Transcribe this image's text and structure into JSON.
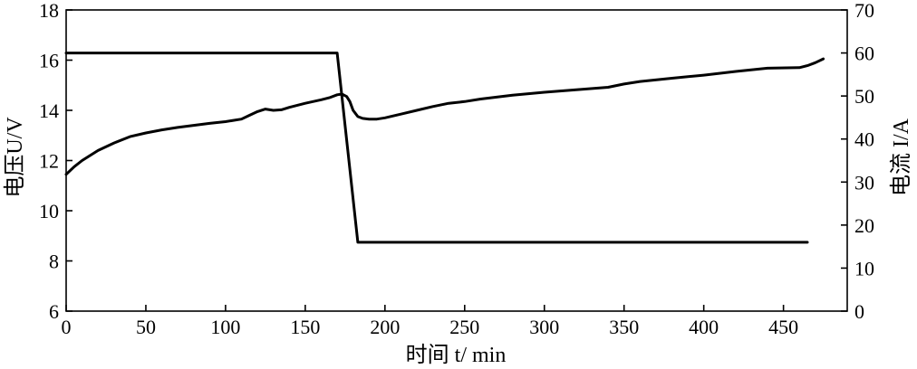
{
  "chart_data": {
    "type": "line",
    "title": "",
    "xlabel": "时间 t/ min",
    "ylabel_left": "电压U/V",
    "ylabel_right": "电流 I/A",
    "xlim": [
      0,
      490
    ],
    "ylim_left": [
      6,
      18
    ],
    "ylim_right": [
      0,
      70
    ],
    "x_ticks": [
      0,
      50,
      100,
      150,
      200,
      250,
      300,
      350,
      400,
      450
    ],
    "y_left_ticks": [
      6,
      8,
      10,
      12,
      14,
      16,
      18
    ],
    "y_right_ticks": [
      0,
      10,
      20,
      30,
      40,
      50,
      60,
      70
    ],
    "grid": false,
    "legend": "none",
    "series": [
      {
        "axis": "left",
        "x": [
          0,
          5,
          10,
          20,
          30,
          40,
          50,
          60,
          70,
          80,
          90,
          100,
          110,
          115,
          120,
          125,
          130,
          135,
          140,
          150,
          160,
          165,
          170,
          173,
          176,
          178,
          180,
          183,
          186,
          190,
          195,
          200,
          210,
          220,
          230,
          240,
          250,
          260,
          280,
          300,
          320,
          340,
          350,
          360,
          380,
          400,
          420,
          440,
          460,
          465,
          470,
          475
        ],
        "values": [
          11.45,
          11.75,
          12.0,
          12.4,
          12.7,
          12.95,
          13.1,
          13.22,
          13.32,
          13.4,
          13.48,
          13.55,
          13.65,
          13.8,
          13.95,
          14.05,
          14.0,
          14.02,
          14.12,
          14.28,
          14.42,
          14.5,
          14.62,
          14.65,
          14.55,
          14.35,
          14.0,
          13.75,
          13.68,
          13.65,
          13.65,
          13.7,
          13.85,
          14.0,
          14.15,
          14.28,
          14.35,
          14.45,
          14.6,
          14.72,
          14.82,
          14.92,
          15.05,
          15.15,
          15.28,
          15.4,
          15.55,
          15.68,
          15.7,
          15.78,
          15.9,
          16.05
        ]
      },
      {
        "axis": "right",
        "x": [
          0,
          170,
          183,
          465
        ],
        "values": [
          60,
          60,
          16,
          16
        ]
      }
    ]
  }
}
